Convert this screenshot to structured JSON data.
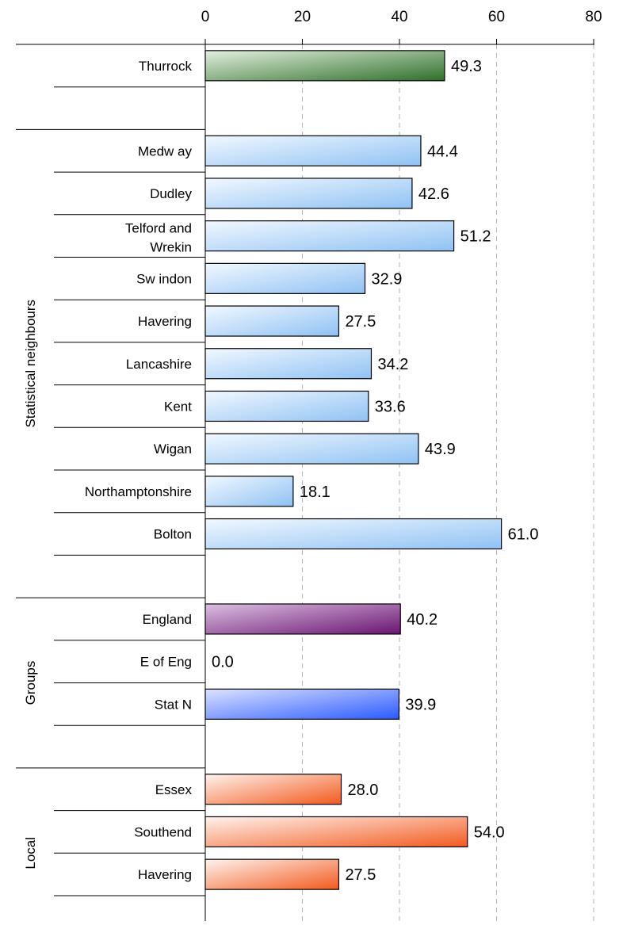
{
  "chart_data": {
    "type": "bar",
    "orientation": "horizontal",
    "xlim": [
      0,
      80
    ],
    "ticks": [
      0,
      20,
      40,
      60,
      80
    ],
    "grid": "vertical dashed",
    "groups": [
      {
        "name": "",
        "rows": [
          {
            "label": "Thurrock",
            "value": 49.3,
            "style": "thurrock"
          }
        ]
      },
      {
        "name": "Statistical neighbours",
        "rows": [
          {
            "label": "Medw ay",
            "value": 44.4,
            "style": "neighbour"
          },
          {
            "label": "Dudley",
            "value": 42.6,
            "style": "neighbour"
          },
          {
            "label": "Telford and Wrekin",
            "value": 51.2,
            "style": "neighbour"
          },
          {
            "label": "Sw indon",
            "value": 32.9,
            "style": "neighbour"
          },
          {
            "label": "Havering",
            "value": 27.5,
            "style": "neighbour"
          },
          {
            "label": "Lancashire",
            "value": 34.2,
            "style": "neighbour"
          },
          {
            "label": "Kent",
            "value": 33.6,
            "style": "neighbour"
          },
          {
            "label": "Wigan",
            "value": 43.9,
            "style": "neighbour"
          },
          {
            "label": "Northamptonshire",
            "value": 18.1,
            "style": "neighbour"
          },
          {
            "label": "Bolton",
            "value": 61.0,
            "style": "neighbour"
          }
        ]
      },
      {
        "name": "Groups",
        "rows": [
          {
            "label": "England",
            "value": 40.2,
            "style": "england"
          },
          {
            "label": "E of Eng",
            "value": 0.0,
            "style": "eofeng"
          },
          {
            "label": "Stat N",
            "value": 39.9,
            "style": "statn"
          }
        ]
      },
      {
        "name": "Local",
        "rows": [
          {
            "label": "Essex",
            "value": 28.0,
            "style": "local"
          },
          {
            "label": "Southend",
            "value": 54.0,
            "style": "local"
          },
          {
            "label": "Havering",
            "value": 27.5,
            "style": "local"
          }
        ]
      }
    ]
  },
  "colors": {
    "thurrock": [
      "#e4f0e0",
      "#2f6f2a"
    ],
    "neighbour": [
      "#f2f8ff",
      "#8fc2f3"
    ],
    "england": [
      "#dcc0e3",
      "#6a1470"
    ],
    "statn": [
      "#dde3ff",
      "#2a5aff"
    ],
    "local": [
      "#fff3ee",
      "#f25a1e"
    ],
    "eofeng": [
      "#ffffff",
      "#cccccc"
    ]
  }
}
